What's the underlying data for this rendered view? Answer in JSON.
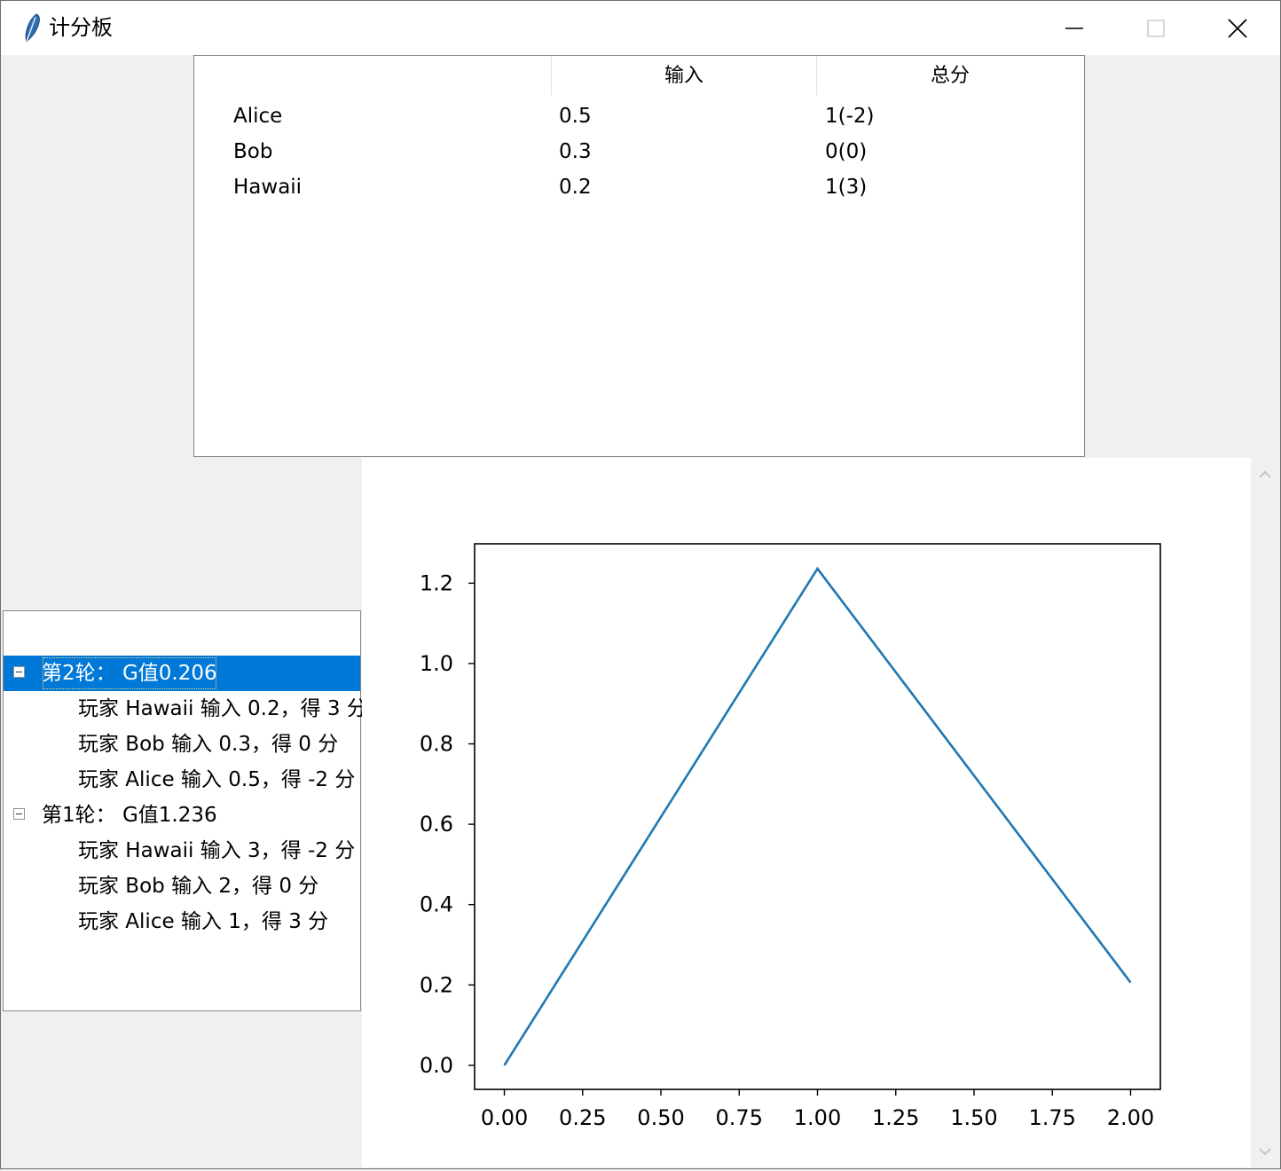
{
  "window": {
    "title": "计分板",
    "icon": "feather-icon",
    "controls": [
      "minimize-icon",
      "maximize-icon",
      "close-icon"
    ]
  },
  "scoreboard": {
    "columns": [
      "",
      "输入",
      "总分"
    ],
    "rows": [
      {
        "name": "Alice",
        "input": "0.5",
        "total": "1(-2)"
      },
      {
        "name": "Bob",
        "input": "0.3",
        "total": "0(0)"
      },
      {
        "name": "Hawaii",
        "input": "0.2",
        "total": "1(3)"
      }
    ]
  },
  "history": {
    "rounds": [
      {
        "label": "第2轮： G值0.206",
        "expanded": true,
        "selected": true,
        "entries": [
          "玩家 Hawaii 输入 0.2，得 3 分",
          "玩家 Bob 输入 0.3，得 0 分",
          "玩家 Alice 输入 0.5，得 -2 分"
        ]
      },
      {
        "label": "第1轮： G值1.236",
        "expanded": true,
        "selected": false,
        "entries": [
          "玩家 Hawaii 输入 3，得 -2 分",
          "玩家 Bob 输入 2，得 0 分",
          "玩家 Alice 输入 1，得 3 分"
        ]
      }
    ]
  },
  "chart_data": {
    "type": "line",
    "title": "",
    "xlabel": "",
    "ylabel": "",
    "x": [
      0,
      1,
      2
    ],
    "series": [
      {
        "values": [
          0,
          1.236,
          0.206
        ],
        "color": "#1f77b4"
      }
    ],
    "xticks": [
      "0.00",
      "0.25",
      "0.50",
      "0.75",
      "1.00",
      "1.25",
      "1.50",
      "1.75",
      "2.00"
    ],
    "yticks": [
      "0.0",
      "0.2",
      "0.4",
      "0.6",
      "0.8",
      "1.0",
      "1.2"
    ],
    "xlim": [
      -0.095,
      2.095
    ],
    "ylim": [
      -0.06,
      1.298
    ],
    "grid": false
  },
  "colors": {
    "selection": "#0078d7",
    "line": "#1f77b4",
    "border": "#828790"
  }
}
